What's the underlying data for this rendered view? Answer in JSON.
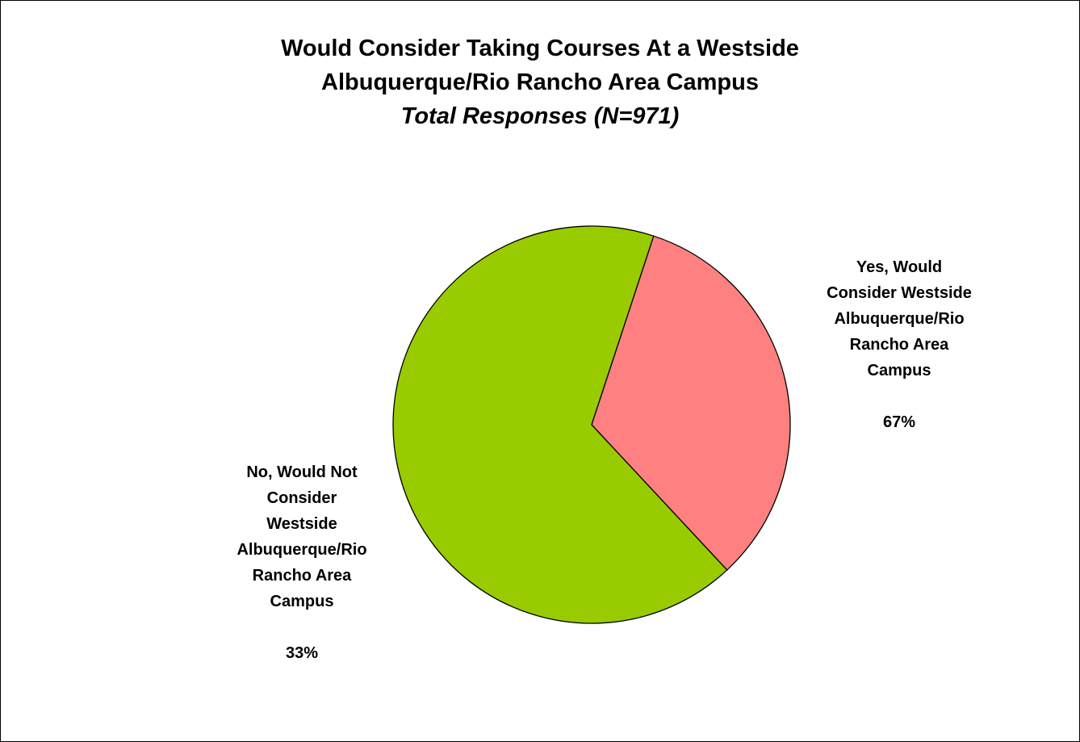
{
  "chart_data": {
    "type": "pie",
    "title": "Would Consider Taking Courses At a Westside Albuquerque/Rio Rancho Area Campus",
    "title_lines": [
      "Would Consider Taking Courses At a Westside",
      "Albuquerque/Rio Rancho Area Campus"
    ],
    "subtitle": "Total Responses (N=971)",
    "slices": [
      {
        "label": "Yes, Would\nConsider Westside\nAlbuquerque/Rio\nRancho Area\nCampus",
        "value": 67,
        "value_label": "67%",
        "color": "#99CC00"
      },
      {
        "label": "No, Would Not\nConsider\nWestside\nAlbuquerque/Rio\nRancho Area\nCampus",
        "value": 33,
        "value_label": "33%",
        "color": "#FF8080"
      }
    ],
    "legend": "none",
    "border_color": "#000000"
  }
}
